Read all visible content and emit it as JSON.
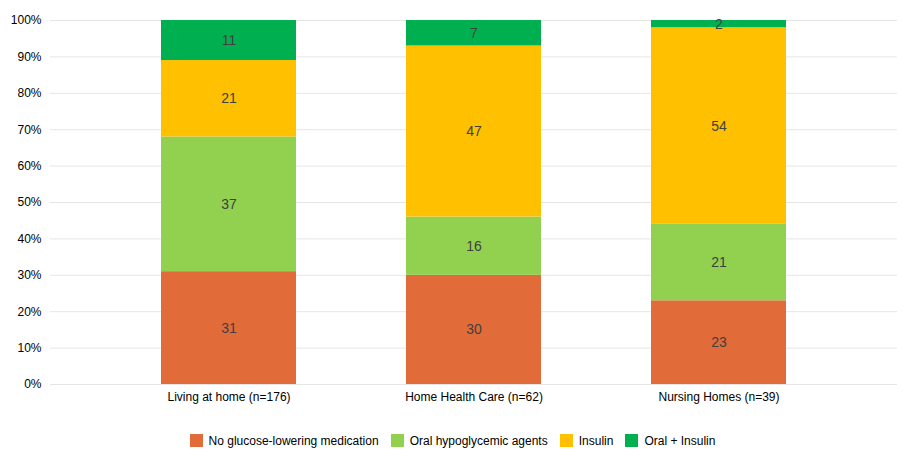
{
  "chart_data": {
    "type": "bar",
    "stacked": true,
    "categories": [
      "Living at home (n=176)",
      "Home Health Care (n=62)",
      "Nursing Homes (n=39)"
    ],
    "series": [
      {
        "name": "No glucose-lowering medication",
        "color": "#E26B3A",
        "values": [
          31,
          30,
          23
        ]
      },
      {
        "name": "Oral hypoglycemic agents",
        "color": "#92D050",
        "values": [
          37,
          16,
          21
        ]
      },
      {
        "name": "Insulin",
        "color": "#FFC000",
        "values": [
          21,
          47,
          54
        ]
      },
      {
        "name": "Oral + Insulin",
        "color": "#00B050",
        "values": [
          11,
          7,
          2
        ]
      }
    ],
    "ylim": [
      0,
      100
    ],
    "yticks": [
      {
        "value": 0,
        "label": "0%"
      },
      {
        "value": 10,
        "label": "10%"
      },
      {
        "value": 20,
        "label": "20%"
      },
      {
        "value": 30,
        "label": "30%"
      },
      {
        "value": 40,
        "label": "40%"
      },
      {
        "value": 50,
        "label": "50%"
      },
      {
        "value": 60,
        "label": "60%"
      },
      {
        "value": 70,
        "label": "70%"
      },
      {
        "value": 80,
        "label": "80%"
      },
      {
        "value": 90,
        "label": "90%"
      },
      {
        "value": 100,
        "label": "100%"
      }
    ],
    "grid": true,
    "data_labels": true,
    "legend": "bottom"
  }
}
